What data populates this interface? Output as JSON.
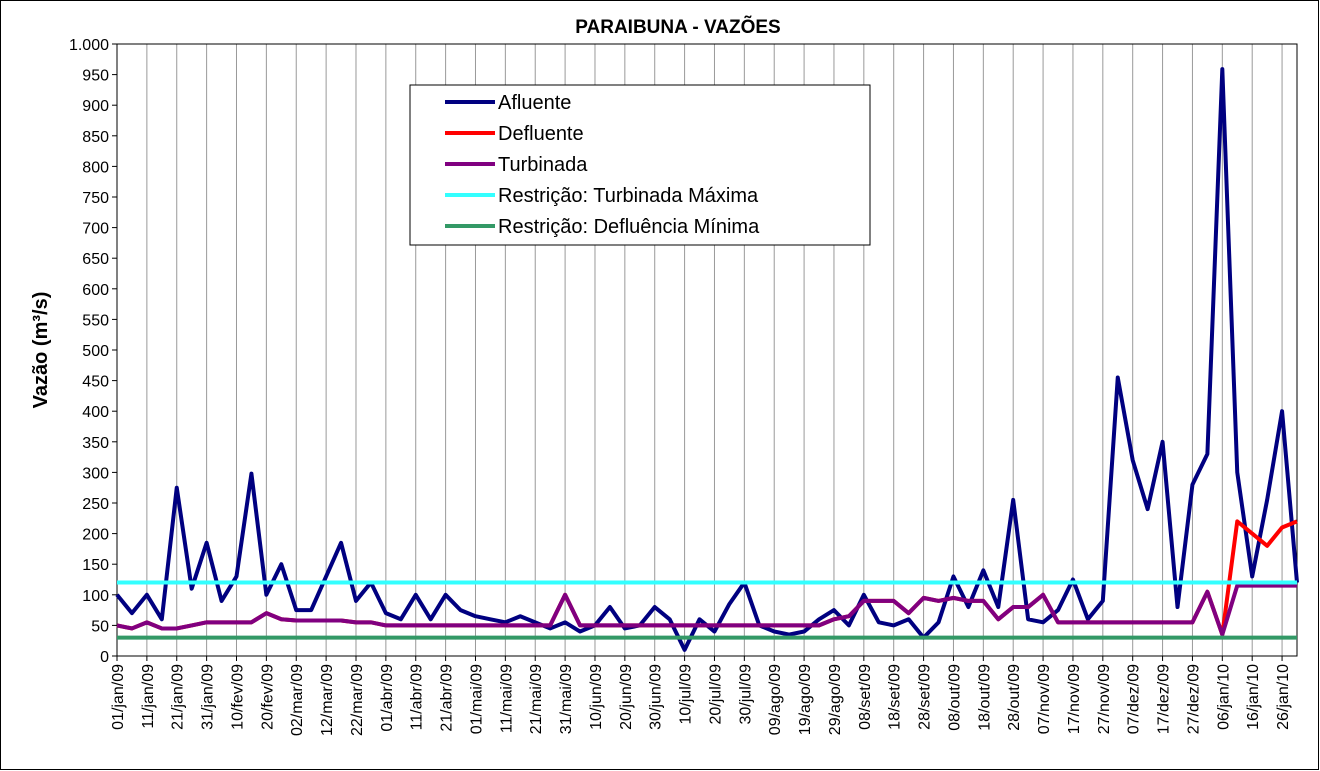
{
  "chart_data": {
    "type": "line",
    "title": "PARAIBUNA - VAZÕES",
    "y_label": "Vazão (m³/s)",
    "categories": [
      "01/jan/09",
      null,
      "11/jan/09",
      null,
      "21/jan/09",
      null,
      "31/jan/09",
      null,
      "10/fev/09",
      null,
      "20/fev/09",
      null,
      "02/mar/09",
      null,
      "12/mar/09",
      null,
      "22/mar/09",
      null,
      "01/abr/09",
      null,
      "11/abr/09",
      null,
      "21/abr/09",
      null,
      "01/mai/09",
      null,
      "11/mai/09",
      null,
      "21/mai/09",
      null,
      "31/mai/09",
      null,
      "10/jun/09",
      null,
      "20/jun/09",
      null,
      "30/jun/09",
      null,
      "10/jul/09",
      null,
      "20/jul/09",
      null,
      "30/jul/09",
      null,
      "09/ago/09",
      null,
      "19/ago/09",
      null,
      "29/ago/09",
      null,
      "08/set/09",
      null,
      "18/set/09",
      null,
      "28/set/09",
      null,
      "08/out/09",
      null,
      "18/out/09",
      null,
      "28/out/09",
      null,
      "07/nov/09",
      null,
      "17/nov/09",
      null,
      "27/nov/09",
      null,
      "07/dez/09",
      null,
      "17/dez/09",
      null,
      "27/dez/09",
      null,
      "06/jan/10",
      null,
      "16/jan/10",
      null,
      "26/jan/10",
      null
    ],
    "series": [
      {
        "name": "Afluente",
        "color": "#000080",
        "values": [
          100,
          70,
          100,
          60,
          275,
          110,
          185,
          90,
          130,
          298,
          100,
          150,
          75,
          75,
          130,
          185,
          90,
          120,
          70,
          60,
          100,
          60,
          100,
          75,
          65,
          60,
          55,
          65,
          55,
          45,
          55,
          40,
          50,
          80,
          45,
          50,
          80,
          60,
          10,
          60,
          40,
          85,
          120,
          50,
          40,
          35,
          40,
          60,
          75,
          50,
          100,
          55,
          50,
          60,
          30,
          55,
          130,
          80,
          140,
          80,
          255,
          60,
          55,
          75,
          125,
          60,
          90,
          455,
          320,
          240,
          350,
          80,
          280,
          330,
          959,
          300,
          130,
          255,
          400,
          120
        ]
      },
      {
        "name": "Defluente",
        "color": "#ff0000",
        "values": [
          50,
          45,
          55,
          45,
          45,
          50,
          55,
          55,
          55,
          55,
          70,
          60,
          58,
          58,
          58,
          58,
          55,
          55,
          50,
          50,
          50,
          50,
          50,
          50,
          50,
          50,
          50,
          50,
          50,
          50,
          100,
          50,
          50,
          50,
          50,
          50,
          50,
          50,
          50,
          50,
          50,
          50,
          50,
          50,
          50,
          50,
          50,
          50,
          60,
          65,
          90,
          90,
          90,
          70,
          95,
          90,
          95,
          90,
          90,
          60,
          80,
          80,
          100,
          55,
          55,
          55,
          55,
          55,
          55,
          55,
          55,
          55,
          55,
          105,
          35,
          220,
          200,
          180,
          210,
          220
        ]
      },
      {
        "name": "Turbinada",
        "color": "#800080",
        "values": [
          50,
          45,
          55,
          45,
          45,
          50,
          55,
          55,
          55,
          55,
          70,
          60,
          58,
          58,
          58,
          58,
          55,
          55,
          50,
          50,
          50,
          50,
          50,
          50,
          50,
          50,
          50,
          50,
          50,
          50,
          100,
          50,
          50,
          50,
          50,
          50,
          50,
          50,
          50,
          50,
          50,
          50,
          50,
          50,
          50,
          50,
          50,
          50,
          60,
          65,
          90,
          90,
          90,
          70,
          95,
          90,
          95,
          90,
          90,
          60,
          80,
          80,
          100,
          55,
          55,
          55,
          55,
          55,
          55,
          55,
          55,
          55,
          55,
          105,
          35,
          115,
          115,
          115,
          115,
          115
        ]
      },
      {
        "name": "Restrição: Turbinada Máxima",
        "color": "#33ffff",
        "values": [
          120,
          120,
          120,
          120,
          120,
          120,
          120,
          120,
          120,
          120,
          120,
          120,
          120,
          120,
          120,
          120,
          120,
          120,
          120,
          120,
          120,
          120,
          120,
          120,
          120,
          120,
          120,
          120,
          120,
          120,
          120,
          120,
          120,
          120,
          120,
          120,
          120,
          120,
          120,
          120,
          120,
          120,
          120,
          120,
          120,
          120,
          120,
          120,
          120,
          120,
          120,
          120,
          120,
          120,
          120,
          120,
          120,
          120,
          120,
          120,
          120,
          120,
          120,
          120,
          120,
          120,
          120,
          120,
          120,
          120,
          120,
          120,
          120,
          120,
          120,
          120,
          120,
          120,
          120,
          120
        ]
      },
      {
        "name": "Restrição: Defluência Mínima",
        "color": "#339966",
        "values": [
          30,
          30,
          30,
          30,
          30,
          30,
          30,
          30,
          30,
          30,
          30,
          30,
          30,
          30,
          30,
          30,
          30,
          30,
          30,
          30,
          30,
          30,
          30,
          30,
          30,
          30,
          30,
          30,
          30,
          30,
          30,
          30,
          30,
          30,
          30,
          30,
          30,
          30,
          30,
          30,
          30,
          30,
          30,
          30,
          30,
          30,
          30,
          30,
          30,
          30,
          30,
          30,
          30,
          30,
          30,
          30,
          30,
          30,
          30,
          30,
          30,
          30,
          30,
          30,
          30,
          30,
          30,
          30,
          30,
          30,
          30,
          30,
          30,
          30,
          30,
          30,
          30,
          30,
          30,
          30
        ]
      }
    ],
    "ylim": [
      0,
      1000
    ],
    "yticks": [
      0,
      50,
      100,
      150,
      200,
      250,
      300,
      350,
      400,
      450,
      500,
      550,
      600,
      650,
      700,
      750,
      800,
      850,
      900,
      950,
      {
        "value": 1000,
        "label": "1.000"
      }
    ],
    "grid": "x",
    "legend": "top-center"
  }
}
